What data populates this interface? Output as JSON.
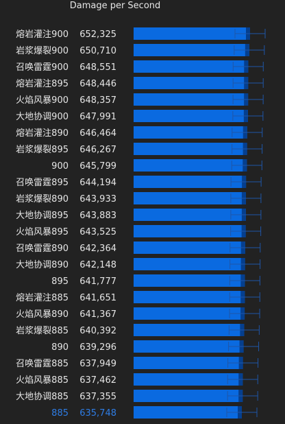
{
  "chart_data": {
    "type": "bar",
    "orientation": "horizontal",
    "title": "Damage per Second",
    "categories": [
      "熔岩灌注900",
      "岩浆爆裂900",
      "召唤雷霆900",
      "熔岩灌注895",
      "火焰风暴900",
      "大地协调900",
      "熔岩灌注890",
      "岩浆爆裂895",
      "900",
      "召唤雷霆895",
      "岩浆爆裂890",
      "大地协调895",
      "火焰风暴895",
      "召唤雷霆890",
      "大地协调890",
      "895",
      "熔岩灌注885",
      "火焰风暴890",
      "岩浆爆裂885",
      "890",
      "召唤雷霆885",
      "火焰风暴885",
      "大地协调885",
      "885"
    ],
    "values": [
      652325,
      650710,
      648551,
      648446,
      648357,
      647991,
      646464,
      646267,
      645799,
      644194,
      643933,
      643883,
      643525,
      642364,
      642148,
      641777,
      641651,
      641367,
      640392,
      639296,
      637949,
      637462,
      637355,
      635748
    ],
    "value_labels": [
      "652,325",
      "650,710",
      "648,551",
      "648,446",
      "648,357",
      "647,991",
      "646,464",
      "646,267",
      "645,799",
      "644,194",
      "643,933",
      "643,883",
      "643,525",
      "642,364",
      "642,148",
      "641,777",
      "641,651",
      "641,367",
      "640,392",
      "639,296",
      "637,949",
      "637,462",
      "637,355",
      "635,748"
    ],
    "highlighted_category": "885",
    "grid": false,
    "legend": "none",
    "colors": {
      "background": "#222222",
      "bar": "#0a6ae0",
      "bar_dark": "#053f8f",
      "text": "#e6e6e6",
      "highlight_text": "#2e7de6",
      "error_bar": "#1f56a8"
    }
  }
}
